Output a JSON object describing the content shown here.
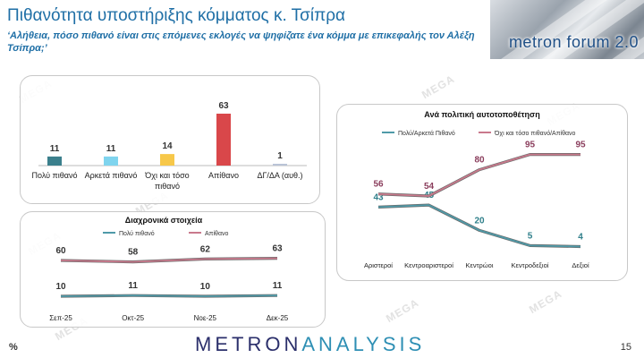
{
  "header": {
    "title": "Πιθανότητα υποστήριξης κόμματος κ. Τσίπρα",
    "subtitle": "‘Αλήθεια, πόσο πιθανό είναι στις επόμενες εκλογές να ψηφίζατε ένα κόμμα με επικεφαλής τον Αλέξη Τσίπρα;’"
  },
  "logo": {
    "text": "metron forum 2.0"
  },
  "watermark": "MEGA",
  "footer": {
    "brand_a": "METRON",
    "brand_b": "ANALYSIS",
    "percent": "%",
    "page": "15"
  },
  "chart_data": [
    {
      "type": "bar",
      "title": "",
      "categories": [
        "Πολύ πιθανό",
        "Αρκετά πιθανό",
        "Όχι και τόσο πιθανό",
        "Απίθανο",
        "ΔΓ/ΔΑ (αυθ.)"
      ],
      "category_lines": [
        [
          "Πολύ πιθανό"
        ],
        [
          "Αρκετά πιθανό"
        ],
        [
          "Όχι και τόσο",
          "πιθανό"
        ],
        [
          "Απίθανο"
        ],
        [
          "ΔΓ/ΔΑ (αυθ.)"
        ]
      ],
      "values": [
        11,
        11,
        14,
        63,
        1
      ],
      "colors": [
        "#3b7f8c",
        "#7fd4ee",
        "#f7c84a",
        "#d9474a",
        "#b9c3d6"
      ],
      "ylim": [
        0,
        63
      ]
    },
    {
      "type": "line",
      "title": "Διαχρονικά στοιχεία",
      "x": [
        "Σεπ-25",
        "Οκτ-25",
        "Νοε-25",
        "Δεκ-25"
      ],
      "series": [
        {
          "name": "Πολύ πιθανό",
          "values": [
            10,
            11,
            10,
            11
          ],
          "color": "#4f9aa8"
        },
        {
          "name": "Απίθανο",
          "values": [
            60,
            58,
            62,
            63
          ],
          "color": "#c9798c"
        }
      ],
      "ylim": [
        0,
        70
      ]
    },
    {
      "type": "line",
      "title": "Ανά πολιτική αυτοτοποθέτηση",
      "x": [
        "Αριστεροί",
        "Κεντροαριστεροί",
        "Κεντρώοι",
        "Κεντροδεξιοί",
        "Δεξιοί"
      ],
      "series": [
        {
          "name": "Πολύ/Αρκετά Πιθανό",
          "values": [
            43,
            45,
            20,
            5,
            4
          ],
          "color": "#4f9aa8"
        },
        {
          "name": "Όχι και τόσο πιθανό/Απίθανο",
          "values": [
            56,
            54,
            80,
            95,
            95
          ],
          "color": "#c9798c"
        }
      ],
      "ylim": [
        0,
        100
      ]
    }
  ]
}
